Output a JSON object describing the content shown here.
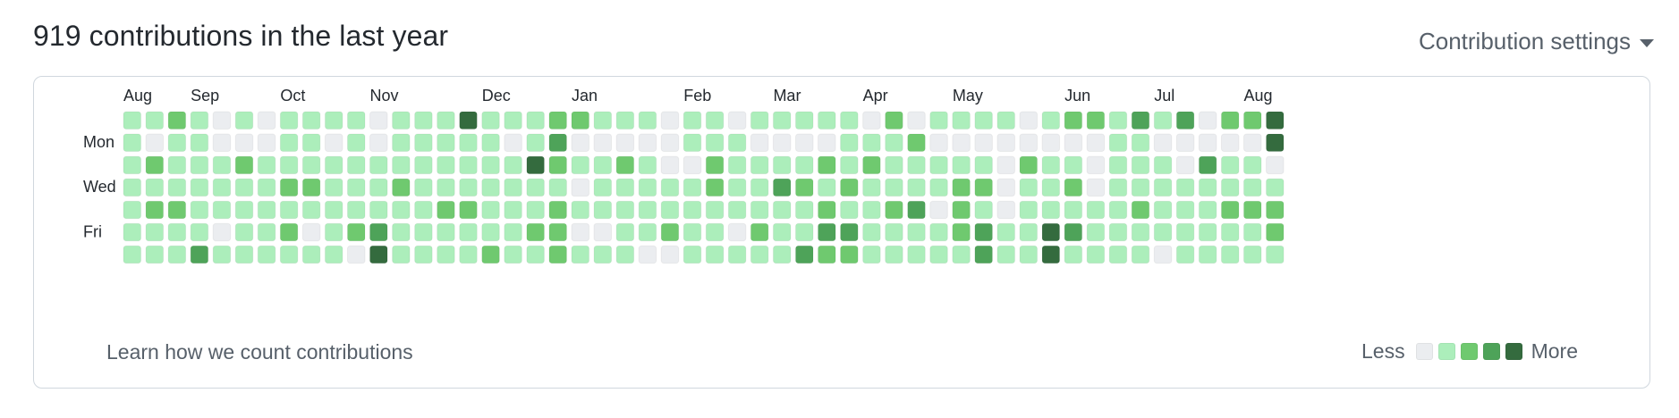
{
  "heading": "919 contributions in the last year",
  "settings_label": "Contribution settings",
  "months": [
    {
      "label": "Aug",
      "week": 0
    },
    {
      "label": "Sep",
      "week": 3
    },
    {
      "label": "Oct",
      "week": 7
    },
    {
      "label": "Nov",
      "week": 11
    },
    {
      "label": "Dec",
      "week": 16
    },
    {
      "label": "Jan",
      "week": 20
    },
    {
      "label": "Feb",
      "week": 25
    },
    {
      "label": "Mar",
      "week": 29
    },
    {
      "label": "Apr",
      "week": 33
    },
    {
      "label": "May",
      "week": 37
    },
    {
      "label": "Jun",
      "week": 42
    },
    {
      "label": "Jul",
      "week": 46
    },
    {
      "label": "Aug",
      "week": 50
    }
  ],
  "day_labels": [
    {
      "label": "Mon",
      "row": 1
    },
    {
      "label": "Wed",
      "row": 3
    },
    {
      "label": "Fri",
      "row": 5
    }
  ],
  "level_colors": [
    "#ebedf0",
    "#aceebb",
    "#6fc96f",
    "#4ea359",
    "#346b3e"
  ],
  "weeks": [
    [
      1,
      1,
      1,
      1,
      1,
      1,
      1
    ],
    [
      1,
      0,
      2,
      1,
      2,
      1,
      1
    ],
    [
      2,
      1,
      1,
      1,
      2,
      1,
      1
    ],
    [
      1,
      1,
      1,
      1,
      1,
      1,
      3
    ],
    [
      0,
      0,
      1,
      1,
      1,
      0,
      1
    ],
    [
      1,
      0,
      2,
      1,
      1,
      1,
      1
    ],
    [
      0,
      0,
      1,
      1,
      1,
      1,
      1
    ],
    [
      1,
      1,
      1,
      2,
      1,
      2,
      1
    ],
    [
      1,
      1,
      1,
      2,
      1,
      0,
      1
    ],
    [
      1,
      0,
      1,
      1,
      1,
      1,
      1
    ],
    [
      1,
      1,
      1,
      1,
      1,
      2,
      0
    ],
    [
      0,
      0,
      1,
      1,
      1,
      3,
      4
    ],
    [
      1,
      1,
      1,
      2,
      1,
      1,
      1
    ],
    [
      1,
      1,
      1,
      1,
      1,
      1,
      1
    ],
    [
      1,
      1,
      1,
      1,
      2,
      1,
      1
    ],
    [
      4,
      1,
      1,
      1,
      2,
      1,
      1
    ],
    [
      1,
      1,
      1,
      1,
      1,
      1,
      2
    ],
    [
      1,
      0,
      1,
      1,
      1,
      1,
      1
    ],
    [
      1,
      1,
      4,
      1,
      1,
      2,
      1
    ],
    [
      2,
      3,
      2,
      1,
      2,
      2,
      2
    ],
    [
      2,
      0,
      1,
      0,
      1,
      0,
      1
    ],
    [
      1,
      0,
      1,
      1,
      1,
      0,
      1
    ],
    [
      1,
      0,
      2,
      1,
      1,
      1,
      1
    ],
    [
      1,
      0,
      1,
      1,
      1,
      1,
      0
    ],
    [
      0,
      0,
      0,
      1,
      1,
      2,
      0
    ],
    [
      1,
      1,
      0,
      1,
      1,
      1,
      1
    ],
    [
      1,
      1,
      2,
      2,
      1,
      1,
      1
    ],
    [
      0,
      1,
      1,
      1,
      1,
      0,
      1
    ],
    [
      1,
      0,
      1,
      1,
      1,
      2,
      1
    ],
    [
      1,
      0,
      1,
      3,
      1,
      1,
      1
    ],
    [
      1,
      0,
      1,
      2,
      1,
      1,
      3
    ],
    [
      1,
      0,
      2,
      1,
      2,
      3,
      2
    ],
    [
      1,
      1,
      1,
      2,
      1,
      3,
      2
    ],
    [
      0,
      1,
      2,
      1,
      1,
      1,
      1
    ],
    [
      2,
      1,
      1,
      1,
      2,
      1,
      1
    ],
    [
      0,
      2,
      1,
      1,
      3,
      1,
      1
    ],
    [
      1,
      0,
      1,
      1,
      0,
      1,
      1
    ],
    [
      1,
      0,
      1,
      2,
      2,
      2,
      1
    ],
    [
      1,
      0,
      1,
      2,
      1,
      3,
      3
    ],
    [
      1,
      0,
      0,
      0,
      0,
      1,
      1
    ],
    [
      0,
      0,
      2,
      1,
      1,
      1,
      1
    ],
    [
      1,
      0,
      1,
      1,
      1,
      4,
      4
    ],
    [
      2,
      0,
      1,
      2,
      1,
      3,
      1
    ],
    [
      2,
      0,
      0,
      0,
      1,
      1,
      1
    ],
    [
      1,
      1,
      1,
      1,
      1,
      1,
      1
    ],
    [
      3,
      1,
      1,
      1,
      2,
      1,
      1
    ],
    [
      1,
      0,
      1,
      1,
      1,
      1,
      0
    ],
    [
      3,
      0,
      0,
      1,
      1,
      1,
      1
    ],
    [
      0,
      0,
      3,
      1,
      1,
      1,
      1
    ],
    [
      2,
      0,
      1,
      1,
      2,
      1,
      1
    ],
    [
      2,
      0,
      1,
      1,
      2,
      1,
      1
    ],
    [
      4,
      4,
      0,
      1,
      2,
      2,
      1
    ]
  ],
  "footer_link": "Learn how we count contributions",
  "legend": {
    "less": "Less",
    "more": "More"
  }
}
